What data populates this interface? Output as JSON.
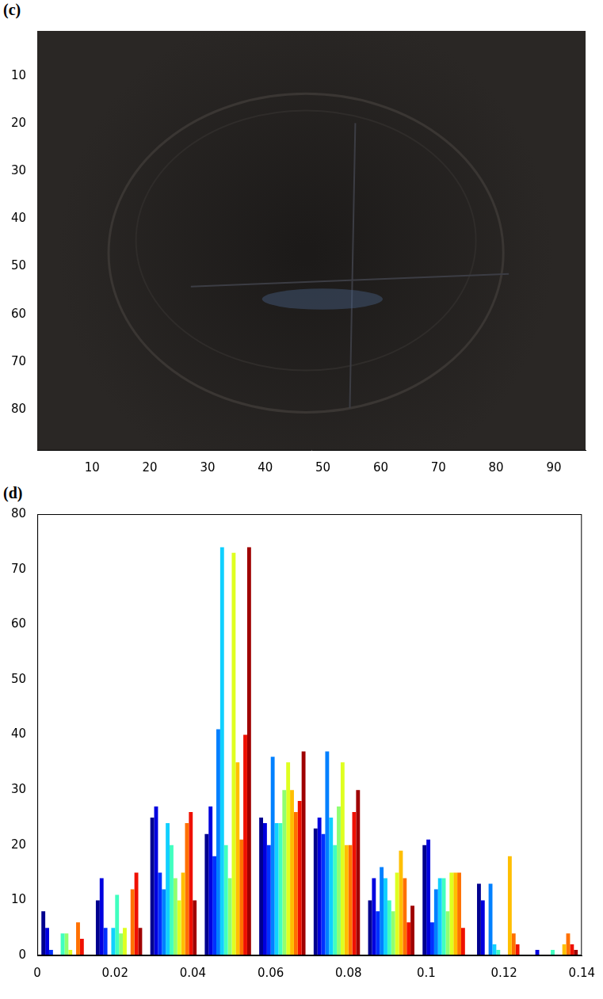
{
  "chart_data": [
    {
      "type": "image",
      "title": "(c)",
      "xlim": [
        0.5,
        95.5
      ],
      "xticks": [
        10,
        20,
        30,
        40,
        50,
        60,
        70,
        80,
        90
      ],
      "ylim": [
        0.5,
        88.5
      ],
      "yticks": [
        10,
        20,
        30,
        40,
        50,
        60,
        70,
        80
      ],
      "grid": false
    },
    {
      "type": "bar",
      "title": "(d)",
      "x": [
        0.007,
        0.021,
        0.035,
        0.049,
        0.063,
        0.077,
        0.091,
        0.105,
        0.119,
        0.133
      ],
      "series": [
        {
          "color": "#00008f",
          "values": [
            8,
            10,
            25,
            22,
            25,
            23,
            10,
            20,
            13,
            0
          ]
        },
        {
          "color": "#0000df",
          "values": [
            5,
            14,
            27,
            27,
            24,
            25,
            14,
            21,
            10,
            1
          ]
        },
        {
          "color": "#0030ff",
          "values": [
            1,
            5,
            15,
            18,
            20,
            22,
            8,
            6,
            0,
            0
          ]
        },
        {
          "color": "#0080ff",
          "values": [
            0,
            0,
            12,
            41,
            36,
            37,
            16,
            12,
            13,
            0
          ]
        },
        {
          "color": "#10d0ff",
          "values": [
            0,
            5,
            24,
            74,
            24,
            25,
            14,
            14,
            2,
            0
          ]
        },
        {
          "color": "#40ffbf",
          "values": [
            4,
            11,
            20,
            20,
            24,
            20,
            10,
            14,
            1,
            1
          ]
        },
        {
          "color": "#90ff70",
          "values": [
            4,
            4,
            14,
            14,
            30,
            27,
            8,
            8,
            0,
            0
          ]
        },
        {
          "color": "#dfff20",
          "values": [
            1,
            5,
            10,
            73,
            35,
            35,
            15,
            15,
            0,
            0
          ]
        },
        {
          "color": "#ffbf00",
          "values": [
            0,
            0,
            15,
            35,
            30,
            20,
            19,
            15,
            18,
            2
          ]
        },
        {
          "color": "#ff7000",
          "values": [
            6,
            12,
            24,
            21,
            26,
            20,
            14,
            15,
            4,
            4
          ]
        },
        {
          "color": "#ef1000",
          "values": [
            3,
            15,
            26,
            40,
            28,
            26,
            6,
            5,
            2,
            2
          ]
        },
        {
          "color": "#9f0000",
          "values": [
            0,
            5,
            10,
            74,
            37,
            30,
            9,
            0,
            0,
            1
          ]
        }
      ],
      "xlim": [
        0,
        0.14
      ],
      "xticks": [
        0,
        0.02,
        0.04,
        0.06,
        0.08,
        0.1,
        0.12,
        0.14
      ],
      "ylim": [
        0,
        80
      ],
      "yticks": [
        0,
        10,
        20,
        30,
        40,
        50,
        60,
        70,
        80
      ],
      "grid": false
    }
  ]
}
